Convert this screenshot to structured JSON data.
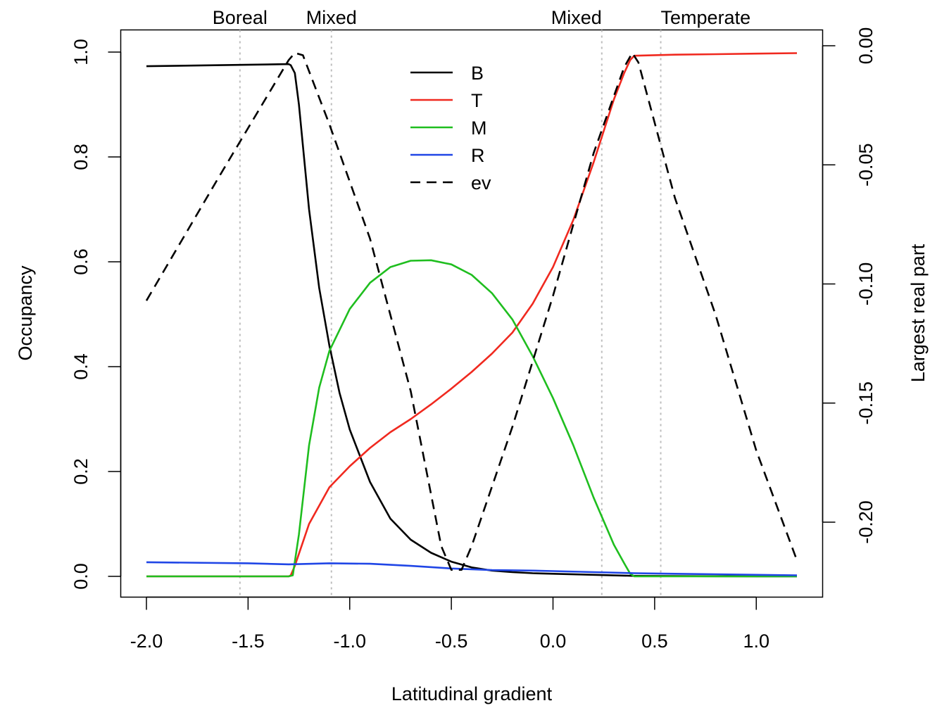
{
  "chart_data": {
    "type": "line",
    "title": "",
    "xlabel": "Latitudinal gradient",
    "ylabel": "Occupancy",
    "y2label": "Largest real part",
    "xlim": [
      -2.0,
      1.2
    ],
    "ylim": [
      0.0,
      1.0
    ],
    "y2lim": [
      -0.22,
      0.0
    ],
    "xticks": [
      "-2.0",
      "-1.5",
      "-1.0",
      "-0.5",
      "0.0",
      "0.5",
      "1.0"
    ],
    "yticks": [
      "0.0",
      "0.2",
      "0.4",
      "0.6",
      "0.8",
      "1.0"
    ],
    "y2ticks": [
      "0.00",
      "-0.05",
      "-0.10",
      "-0.15",
      "-0.20"
    ],
    "grid": false,
    "legend_position": "top-center",
    "zones": [
      {
        "label": "Boreal",
        "x": -1.54
      },
      {
        "label": "Mixed",
        "x": -1.09
      },
      {
        "label": "Mixed",
        "x": 0.24
      },
      {
        "label": "Temperate",
        "x": 0.53
      }
    ],
    "series": [
      {
        "name": "B",
        "color": "#000000",
        "style": "solid",
        "axis": "left",
        "x": [
          -2.0,
          -1.3,
          -1.29,
          -1.27,
          -1.25,
          -1.2,
          -1.15,
          -1.1,
          -1.05,
          -1.0,
          -0.9,
          -0.8,
          -0.7,
          -0.6,
          -0.5,
          -0.4,
          -0.3,
          -0.2,
          -0.1,
          0.0,
          0.2,
          0.4,
          0.6,
          0.8,
          1.0,
          1.2
        ],
        "y": [
          0.973,
          0.977,
          0.975,
          0.96,
          0.9,
          0.7,
          0.55,
          0.44,
          0.35,
          0.28,
          0.18,
          0.11,
          0.07,
          0.045,
          0.028,
          0.017,
          0.011,
          0.008,
          0.006,
          0.005,
          0.003,
          0.001,
          0.0005,
          0.0003,
          0.0002,
          0.0001
        ]
      },
      {
        "name": "T",
        "color": "#f0291f",
        "style": "solid",
        "axis": "left",
        "x": [
          -2.0,
          -1.3,
          -1.29,
          -1.27,
          -1.2,
          -1.1,
          -1.0,
          -0.9,
          -0.8,
          -0.7,
          -0.6,
          -0.5,
          -0.4,
          -0.3,
          -0.2,
          -0.1,
          0.0,
          0.1,
          0.2,
          0.3,
          0.35,
          0.38,
          0.4,
          0.6,
          0.8,
          1.0,
          1.2
        ],
        "y": [
          0.0,
          0.0,
          0.002,
          0.02,
          0.1,
          0.17,
          0.21,
          0.245,
          0.275,
          0.3,
          0.328,
          0.358,
          0.39,
          0.425,
          0.465,
          0.52,
          0.59,
          0.68,
          0.79,
          0.91,
          0.96,
          0.985,
          0.993,
          0.995,
          0.996,
          0.997,
          0.998
        ]
      },
      {
        "name": "M",
        "color": "#1fbe1f",
        "style": "solid",
        "axis": "left",
        "x": [
          -2.0,
          -1.3,
          -1.28,
          -1.25,
          -1.2,
          -1.15,
          -1.1,
          -1.0,
          -0.9,
          -0.8,
          -0.7,
          -0.6,
          -0.5,
          -0.4,
          -0.3,
          -0.2,
          -0.1,
          0.0,
          0.1,
          0.2,
          0.3,
          0.35,
          0.38,
          0.4,
          0.6,
          0.8,
          1.0,
          1.2
        ],
        "y": [
          0.0,
          0.0,
          0.002,
          0.08,
          0.25,
          0.36,
          0.43,
          0.51,
          0.56,
          0.59,
          0.602,
          0.603,
          0.595,
          0.575,
          0.54,
          0.49,
          0.42,
          0.34,
          0.25,
          0.15,
          0.06,
          0.025,
          0.005,
          0.0,
          0.0,
          0.0,
          0.0,
          0.0
        ]
      },
      {
        "name": "R",
        "color": "#2046e6",
        "style": "solid",
        "axis": "left",
        "x": [
          -2.0,
          -1.5,
          -1.3,
          -1.1,
          -0.9,
          -0.7,
          -0.5,
          -0.3,
          -0.1,
          0.0,
          0.2,
          0.4,
          0.6,
          0.8,
          1.0,
          1.2
        ],
        "y": [
          0.027,
          0.025,
          0.023,
          0.025,
          0.024,
          0.02,
          0.015,
          0.012,
          0.011,
          0.01,
          0.008,
          0.006,
          0.005,
          0.004,
          0.003,
          0.002
        ]
      },
      {
        "name": "ev",
        "color": "#000000",
        "style": "dashed",
        "axis": "right",
        "x": [
          -2.0,
          -1.65,
          -1.3,
          -1.27,
          -1.23,
          -1.1,
          -0.9,
          -0.7,
          -0.55,
          -0.5,
          -0.45,
          -0.4,
          -0.2,
          0.0,
          0.2,
          0.35,
          0.39,
          0.42,
          0.6,
          0.8,
          1.0,
          1.2
        ],
        "y": [
          -0.107,
          -0.056,
          -0.006,
          -0.003,
          -0.004,
          -0.033,
          -0.081,
          -0.145,
          -0.21,
          -0.22,
          -0.22,
          -0.21,
          -0.16,
          -0.105,
          -0.045,
          -0.009,
          -0.003,
          -0.007,
          -0.064,
          -0.113,
          -0.17,
          -0.216
        ]
      }
    ]
  }
}
